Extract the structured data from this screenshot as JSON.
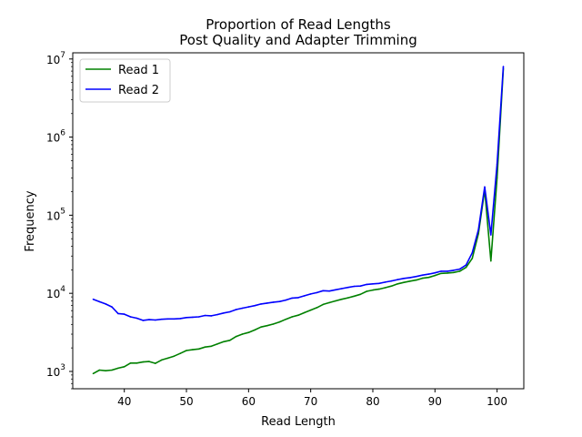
{
  "chart_data": {
    "type": "line",
    "title": "Proportion of Read Lengths",
    "subtitle": "Post Quality and Adapter Trimming",
    "xlabel": "Read Length",
    "ylabel": "Frequency",
    "xlim": [
      31.7,
      104.3
    ],
    "ylim": [
      600,
      12000000
    ],
    "yscale": "log",
    "grid": false,
    "legend_position": "top-left",
    "x_ticks": [
      40,
      50,
      60,
      70,
      80,
      90,
      100
    ],
    "y_ticks": [
      {
        "value": 1000,
        "base": "10",
        "exp": "3"
      },
      {
        "value": 10000,
        "base": "10",
        "exp": "4"
      },
      {
        "value": 100000,
        "base": "10",
        "exp": "5"
      },
      {
        "value": 1000000,
        "base": "10",
        "exp": "6"
      },
      {
        "value": 10000000,
        "base": "10",
        "exp": "7"
      }
    ],
    "x": [
      35,
      36,
      37,
      38,
      39,
      40,
      41,
      42,
      43,
      44,
      45,
      46,
      47,
      48,
      49,
      50,
      51,
      52,
      53,
      54,
      55,
      56,
      57,
      58,
      59,
      60,
      61,
      62,
      63,
      64,
      65,
      66,
      67,
      68,
      69,
      70,
      71,
      72,
      73,
      74,
      75,
      76,
      77,
      78,
      79,
      80,
      81,
      82,
      83,
      84,
      85,
      86,
      87,
      88,
      89,
      90,
      91,
      92,
      93,
      94,
      95,
      96,
      97,
      98,
      99,
      100,
      101
    ],
    "series": [
      {
        "name": "Read 1",
        "color": "#008000",
        "values": [
          940,
          1040,
          1020,
          1040,
          1100,
          1150,
          1280,
          1280,
          1320,
          1340,
          1270,
          1400,
          1480,
          1570,
          1700,
          1850,
          1900,
          1940,
          2050,
          2100,
          2250,
          2400,
          2500,
          2800,
          3000,
          3150,
          3400,
          3700,
          3850,
          4050,
          4300,
          4650,
          5000,
          5250,
          5650,
          6100,
          6550,
          7200,
          7600,
          8000,
          8400,
          8750,
          9200,
          9700,
          10600,
          11000,
          11300,
          11800,
          12400,
          13200,
          13800,
          14300,
          14800,
          15600,
          16000,
          16900,
          18000,
          18200,
          18500,
          19200,
          21500,
          28000,
          58000,
          210000,
          26000,
          300000,
          7500000
        ]
      },
      {
        "name": "Read 2",
        "color": "#0000ff",
        "values": [
          8400,
          7800,
          7300,
          6700,
          5500,
          5400,
          5000,
          4800,
          4500,
          4600,
          4550,
          4650,
          4700,
          4700,
          4750,
          4900,
          4950,
          5000,
          5200,
          5150,
          5350,
          5600,
          5800,
          6200,
          6450,
          6700,
          6950,
          7300,
          7500,
          7700,
          7850,
          8200,
          8700,
          8800,
          9300,
          9800,
          10200,
          10800,
          10700,
          11100,
          11500,
          11900,
          12300,
          12400,
          13000,
          13200,
          13400,
          13900,
          14400,
          15000,
          15500,
          15900,
          16400,
          17100,
          17600,
          18300,
          19200,
          19200,
          19700,
          20400,
          23000,
          33000,
          65000,
          230000,
          56000,
          450000,
          8000000
        ]
      }
    ]
  }
}
